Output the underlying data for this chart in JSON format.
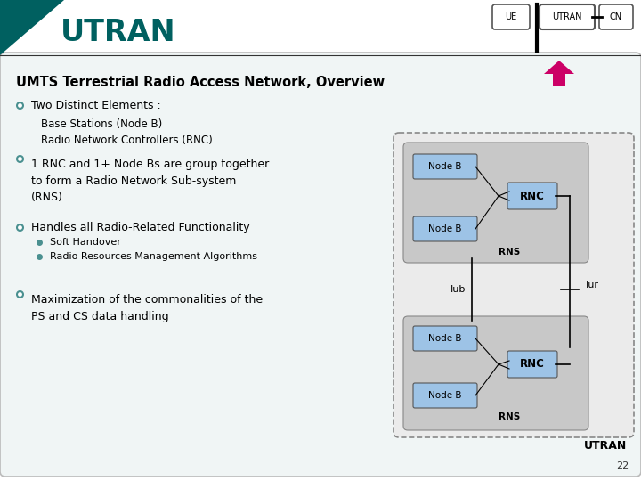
{
  "title": "UTRAN",
  "title_color": "#006060",
  "header_bg": "#FFFFFF",
  "slide_bg": "#FFFFFF",
  "content_bg": "#FFFFFF",
  "subtitle": "UMTS Terrestrial Radio Access Network, Overview",
  "bullet1": "Two Distinct Elements :",
  "indented_text": "Base Stations (Node B)\nRadio Network Controllers (RNC)",
  "bullet2_line1": "1 RNC and 1+ Node Bs are group together",
  "bullet2_line2": "to form a Radio Network Sub-system",
  "bullet2_line3": "(RNS)",
  "bullet3": "Handles all Radio-Related Functionality",
  "sub_bullet1": "Soft Handover",
  "sub_bullet2": "Radio Resources Management Algorithms",
  "bullet4_line1": "Maximization of the commonalities of the",
  "bullet4_line2": "PS and CS data handling",
  "node_b_color": "#9DC3E6",
  "rnc_color": "#9DC3E6",
  "rns_bg": "#C0C0C0",
  "outer_bg": "#E8E8E8",
  "page_number": "22",
  "utran_label": "UTRAN",
  "arrow_color": "#CC0066",
  "bullet_color": "#4A9090",
  "sub_bullet_color": "#4A9090",
  "header_line_color": "#333333",
  "teal_dark": "#006060",
  "teal_tri": "#004040"
}
